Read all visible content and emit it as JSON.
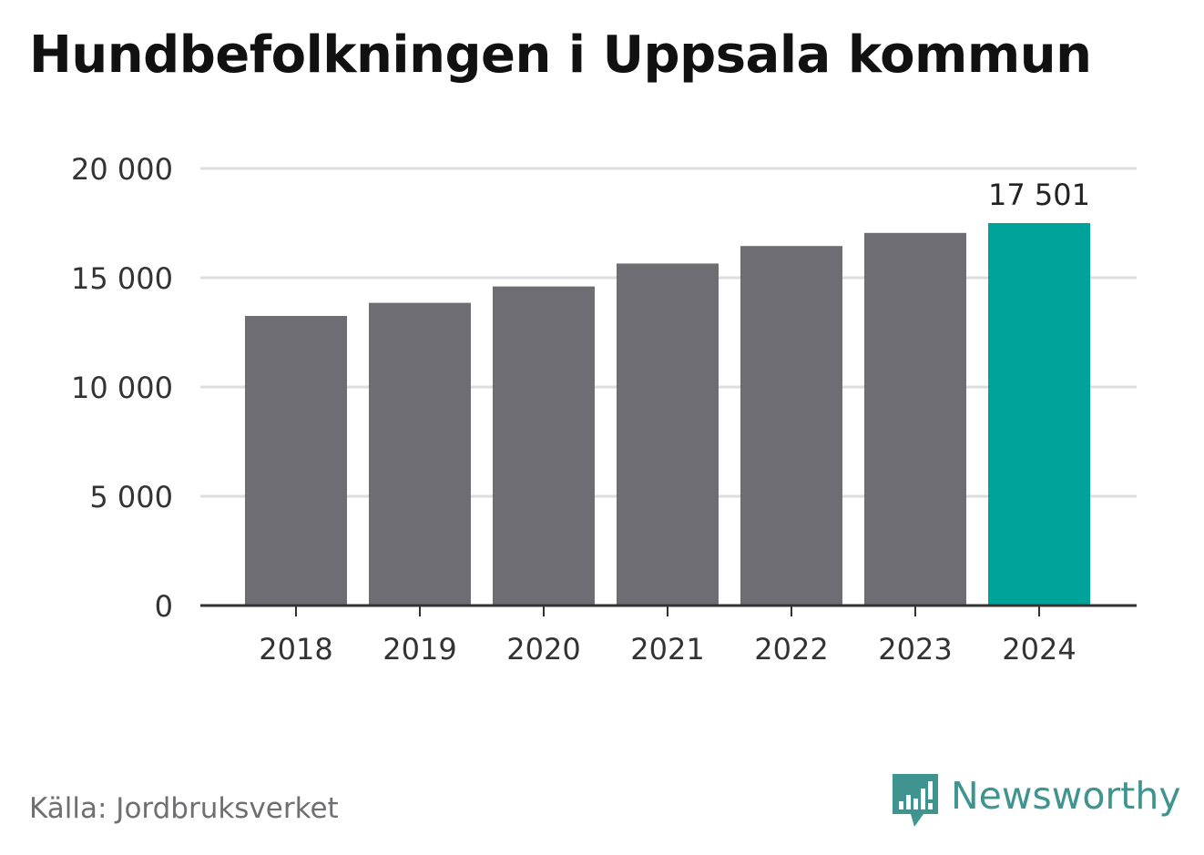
{
  "chart_data": {
    "type": "bar",
    "title": "Hundbefolkningen i Uppsala kommun",
    "categories": [
      "2018",
      "2019",
      "2020",
      "2021",
      "2022",
      "2023",
      "2024"
    ],
    "values": [
      13250,
      13850,
      14600,
      15650,
      16450,
      17050,
      17501
    ],
    "ylim": [
      0,
      20000
    ],
    "yticks": [
      0,
      5000,
      10000,
      15000,
      20000
    ],
    "ytick_labels": [
      "0",
      "5 000",
      "10 000",
      "15 000",
      "20 000"
    ],
    "xlabel": "",
    "ylabel": "",
    "grid": true,
    "bar_color": "#6e6d73",
    "highlight_color": "#00a39a",
    "highlight_category": "2024",
    "data_labels": [
      {
        "category": "2024",
        "text": "17 501"
      }
    ]
  },
  "footer": {
    "source": "Källa: Jordbruksverket",
    "brand": "Newsworthy",
    "brand_icon": "newsworthy-logo-icon",
    "brand_color": "#3f9490"
  }
}
